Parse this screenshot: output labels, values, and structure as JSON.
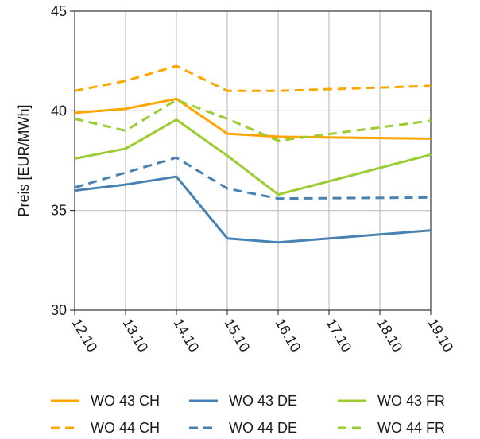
{
  "chart_data": {
    "type": "line",
    "title": "",
    "xlabel": "",
    "ylabel": "Preis [EUR/MWh]",
    "x": [
      "12.10",
      "13.10",
      "14.10",
      "15.10",
      "16.10",
      "17.10",
      "18.10",
      "19.10"
    ],
    "ylim": [
      30,
      45
    ],
    "yticks": [
      30,
      35,
      40,
      45
    ],
    "grid": true,
    "legend_position": "bottom",
    "series": [
      {
        "name": "WO 43 CH",
        "color": "#FFA500",
        "dash": "solid",
        "points": [
          [
            "12.10",
            39.9
          ],
          [
            "13.10",
            40.1
          ],
          [
            "14.10",
            40.6
          ],
          [
            "15.10",
            38.85
          ],
          [
            "16.10",
            38.7
          ],
          [
            "19.10",
            38.6
          ]
        ]
      },
      {
        "name": "WO 44 CH",
        "color": "#FFA500",
        "dash": "dashed",
        "points": [
          [
            "12.10",
            41.0
          ],
          [
            "13.10",
            41.5
          ],
          [
            "14.10",
            42.25
          ],
          [
            "15.10",
            41.0
          ],
          [
            "16.10",
            41.0
          ],
          [
            "19.10",
            41.25
          ]
        ]
      },
      {
        "name": "WO 43 DE",
        "color": "#4682B4",
        "dash": "solid",
        "points": [
          [
            "12.10",
            36.0
          ],
          [
            "13.10",
            36.3
          ],
          [
            "14.10",
            36.7
          ],
          [
            "15.10",
            33.6
          ],
          [
            "16.10",
            33.4
          ],
          [
            "19.10",
            34.0
          ]
        ]
      },
      {
        "name": "WO 44 DE",
        "color": "#4682B4",
        "dash": "dashed",
        "points": [
          [
            "12.10",
            36.15
          ],
          [
            "13.10",
            36.9
          ],
          [
            "14.10",
            37.65
          ],
          [
            "15.10",
            36.1
          ],
          [
            "16.10",
            35.6
          ],
          [
            "19.10",
            35.65
          ]
        ]
      },
      {
        "name": "WO 43 FR",
        "color": "#9ACD32",
        "dash": "solid",
        "points": [
          [
            "12.10",
            37.6
          ],
          [
            "13.10",
            38.1
          ],
          [
            "14.10",
            39.55
          ],
          [
            "15.10",
            37.75
          ],
          [
            "16.10",
            35.8
          ],
          [
            "19.10",
            37.8
          ]
        ]
      },
      {
        "name": "WO 44 FR",
        "color": "#9ACD32",
        "dash": "dashed",
        "points": [
          [
            "12.10",
            39.6
          ],
          [
            "13.10",
            39.0
          ],
          [
            "14.10",
            40.55
          ],
          [
            "15.10",
            39.6
          ],
          [
            "16.10",
            38.5
          ],
          [
            "19.10",
            39.5
          ]
        ]
      }
    ]
  }
}
